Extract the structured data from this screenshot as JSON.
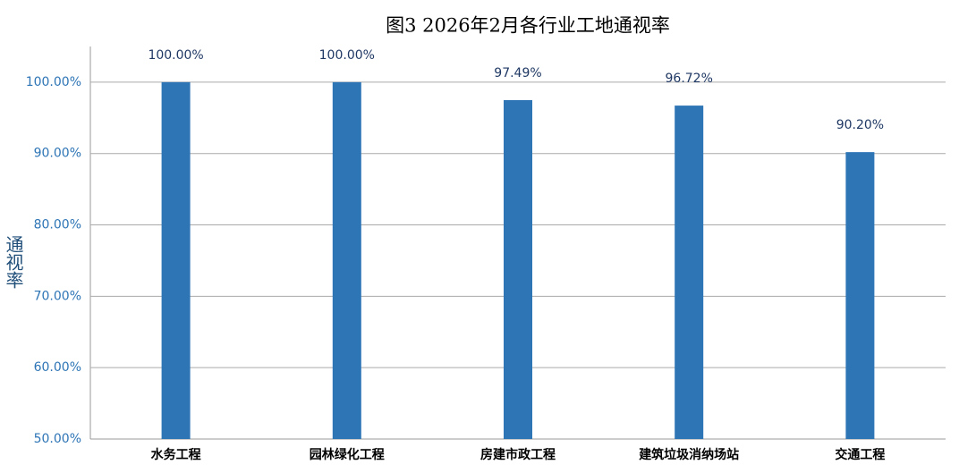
{
  "chart_data": {
    "type": "bar",
    "title": "图3 2026年2月各行业工地通视率",
    "y_label": "通视率",
    "categories": [
      "水务工程",
      "园林绿化工程",
      "房建市政工程",
      "建筑垃圾消纳场站",
      "交通工程"
    ],
    "values": [
      100,
      100,
      97.49,
      96.72,
      90.2
    ],
    "value_labels": [
      "100.00%",
      "100.00%",
      "97.49%",
      "96.72%",
      "90.20%"
    ],
    "color": "#2e75b6",
    "ylim": [
      50,
      105
    ],
    "yticks": [
      {
        "value": 50,
        "label": "50.00%"
      },
      {
        "value": 60,
        "label": "60.00%"
      },
      {
        "value": 70,
        "label": "70.00%"
      },
      {
        "value": 80,
        "label": "80.00%"
      },
      {
        "value": 90,
        "label": "90.00%"
      },
      {
        "value": 100,
        "label": "100.00%"
      }
    ],
    "grid": true
  }
}
